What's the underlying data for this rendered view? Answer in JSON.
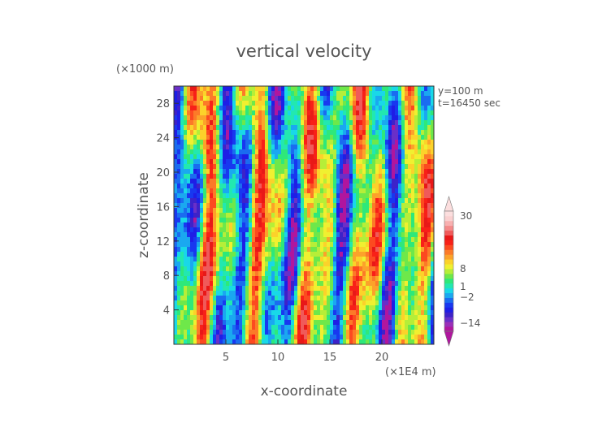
{
  "chart_data": {
    "type": "heatmap",
    "title": "vertical velocity",
    "xlabel": "x-coordinate",
    "ylabel": "z-coordinate",
    "x_unit": "(×1E4 m)",
    "y_unit": "(×1000 m)",
    "info": [
      "y=100 m",
      "t=16450 sec"
    ],
    "xlim": [
      0,
      25
    ],
    "ylim": [
      0,
      30
    ],
    "x_ticks": [
      5,
      10,
      15,
      20
    ],
    "y_ticks": [
      4,
      8,
      12,
      16,
      20,
      24,
      28
    ],
    "colorbar": {
      "tick_labels": [
        "30",
        "8",
        "1",
        "−2",
        "−14"
      ],
      "tick_values": [
        30,
        8,
        1,
        -2,
        -14
      ],
      "extend": "both",
      "colors": [
        "#b0169e",
        "#9a2fb8",
        "#6a2fc8",
        "#3d22c9",
        "#1e1ee6",
        "#1838f0",
        "#1a6cf0",
        "#1aa8f0",
        "#19d8e8",
        "#22e8b0",
        "#2ee87a",
        "#6ee84a",
        "#b6ee38",
        "#f0f030",
        "#fcd22a",
        "#fca22a",
        "#fc7a28",
        "#fc4a20",
        "#f82018",
        "#e81818",
        "#f05a5a",
        "#f48a8a",
        "#f8b0b0",
        "#fad0d0",
        "#fcdede"
      ]
    }
  }
}
